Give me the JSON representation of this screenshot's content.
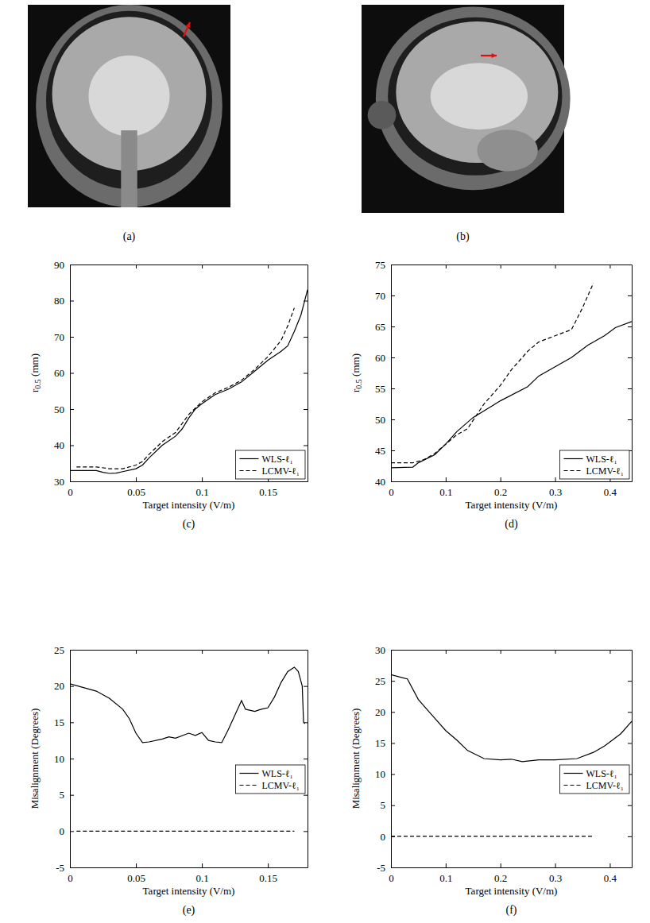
{
  "images": [
    {
      "label": "(a)"
    },
    {
      "label": "(b)"
    }
  ],
  "chart_data": [
    {
      "type": "line",
      "label": "(c)",
      "xlabel": "Target intensity (V/m)",
      "ylabel": "r0.5 (mm)",
      "xlim": [
        0,
        0.18
      ],
      "xticks": [
        0,
        0.05,
        0.1,
        0.15
      ],
      "ylim": [
        30,
        90
      ],
      "yticks": [
        30,
        40,
        50,
        60,
        70,
        80,
        90
      ],
      "legend": "lower right",
      "series": [
        {
          "name": "WLS-ℓ₁",
          "color": "#000000",
          "line_style": "solid",
          "x": [
            0,
            0.01,
            0.02,
            0.025,
            0.03,
            0.035,
            0.04,
            0.05,
            0.055,
            0.06,
            0.07,
            0.08,
            0.085,
            0.09,
            0.095,
            0.1,
            0.11,
            0.12,
            0.13,
            0.14,
            0.15,
            0.16,
            0.165,
            0.17,
            0.175,
            0.18
          ],
          "values": [
            33,
            33,
            33,
            32.5,
            32.2,
            32.3,
            32.7,
            33.5,
            34.5,
            36.5,
            40,
            42.5,
            44.5,
            47.5,
            50,
            51.5,
            54,
            55.5,
            57.5,
            60.5,
            63.5,
            66,
            67.5,
            71.5,
            76,
            83
          ]
        },
        {
          "name": "LCMV-ℓ₁",
          "color": "#000000",
          "line_style": "dashed",
          "x": [
            0.005,
            0.02,
            0.03,
            0.04,
            0.05,
            0.055,
            0.06,
            0.07,
            0.08,
            0.09,
            0.1,
            0.11,
            0.12,
            0.13,
            0.14,
            0.15,
            0.16,
            0.165,
            0.17
          ],
          "values": [
            34,
            34,
            33.5,
            33.5,
            34.5,
            35.5,
            37.5,
            41,
            43.5,
            48.5,
            52,
            54.5,
            56,
            58,
            61,
            64.5,
            69,
            73,
            78
          ]
        }
      ]
    },
    {
      "type": "line",
      "label": "(d)",
      "xlabel": "Target intensity (V/m)",
      "ylabel": "r0.5 (mm)",
      "xlim": [
        0,
        0.44
      ],
      "xticks": [
        0,
        0.1,
        0.2,
        0.3,
        0.4
      ],
      "ylim": [
        40,
        75
      ],
      "yticks": [
        40,
        45,
        50,
        55,
        60,
        65,
        70,
        75
      ],
      "legend": "lower right",
      "series": [
        {
          "name": "WLS-ℓ₁",
          "color": "#000000",
          "line_style": "solid",
          "x": [
            0,
            0.04,
            0.05,
            0.08,
            0.1,
            0.12,
            0.15,
            0.2,
            0.25,
            0.27,
            0.3,
            0.33,
            0.36,
            0.39,
            0.41,
            0.44
          ],
          "values": [
            42.2,
            42.3,
            43,
            44.3,
            46,
            48,
            50.3,
            53,
            55.3,
            57,
            58.5,
            60,
            62,
            63.5,
            64.8,
            65.8
          ]
        },
        {
          "name": "LCMV-ℓ₁",
          "color": "#000000",
          "line_style": "dashed",
          "x": [
            0,
            0.04,
            0.06,
            0.08,
            0.1,
            0.12,
            0.14,
            0.17,
            0.2,
            0.22,
            0.25,
            0.27,
            0.3,
            0.33,
            0.35,
            0.37
          ],
          "values": [
            43,
            43,
            43.5,
            44.5,
            46,
            47.5,
            48.5,
            52.5,
            55.5,
            58,
            61,
            62.5,
            63.5,
            64.5,
            68,
            72
          ]
        }
      ]
    },
    {
      "type": "line",
      "label": "(e)",
      "xlabel": "Target intensity (V/m)",
      "ylabel": "Misalignment (Degrees)",
      "xlim": [
        0,
        0.18
      ],
      "xticks": [
        0,
        0.05,
        0.1,
        0.15
      ],
      "ylim": [
        -5,
        25
      ],
      "yticks": [
        -5,
        0,
        5,
        10,
        15,
        20,
        25
      ],
      "legend": "right",
      "series": [
        {
          "name": "WLS-ℓ₁",
          "color": "#000000",
          "line_style": "solid",
          "x": [
            0,
            0.02,
            0.03,
            0.04,
            0.045,
            0.05,
            0.055,
            0.06,
            0.07,
            0.075,
            0.08,
            0.09,
            0.095,
            0.1,
            0.105,
            0.11,
            0.115,
            0.12,
            0.125,
            0.13,
            0.133,
            0.14,
            0.145,
            0.15,
            0.155,
            0.16,
            0.165,
            0.17,
            0.173,
            0.176,
            0.177,
            0.178
          ],
          "values": [
            20.3,
            19.3,
            18.3,
            16.8,
            15.5,
            13.5,
            12.2,
            12.3,
            12.7,
            13,
            12.8,
            13.5,
            13.2,
            13.6,
            12.5,
            12.3,
            12.2,
            14,
            16,
            18,
            16.8,
            16.5,
            16.8,
            17,
            18.5,
            20.5,
            22,
            22.6,
            22,
            20,
            15,
            14.8
          ]
        },
        {
          "name": "LCMV-ℓ₁",
          "color": "#000000",
          "line_style": "dashed",
          "x": [
            0.005,
            0.05,
            0.1,
            0.15,
            0.17
          ],
          "values": [
            0,
            0,
            0,
            0,
            0
          ]
        }
      ]
    },
    {
      "type": "line",
      "label": "(f)",
      "xlabel": "Target intensity (V/m)",
      "ylabel": "Misalignment (Degrees)",
      "xlim": [
        0,
        0.44
      ],
      "xticks": [
        0,
        0.1,
        0.2,
        0.3,
        0.4
      ],
      "ylim": [
        -5,
        30
      ],
      "yticks": [
        -5,
        0,
        5,
        10,
        15,
        20,
        25,
        30
      ],
      "legend": "right",
      "series": [
        {
          "name": "WLS-ℓ₁",
          "color": "#000000",
          "line_style": "solid",
          "x": [
            0,
            0.03,
            0.05,
            0.07,
            0.08,
            0.1,
            0.12,
            0.14,
            0.17,
            0.2,
            0.22,
            0.24,
            0.27,
            0.3,
            0.34,
            0.37,
            0.39,
            0.42,
            0.44
          ],
          "values": [
            26,
            25.3,
            22,
            20,
            19,
            17,
            15.5,
            13.8,
            12.5,
            12.3,
            12.4,
            12,
            12.3,
            12.3,
            12.5,
            13.5,
            14.5,
            16.5,
            18.5
          ]
        },
        {
          "name": "LCMV-ℓ₁",
          "color": "#000000",
          "line_style": "dashed",
          "x": [
            0,
            0.1,
            0.2,
            0.3,
            0.37
          ],
          "values": [
            0,
            0,
            0,
            0,
            0
          ]
        }
      ]
    }
  ]
}
